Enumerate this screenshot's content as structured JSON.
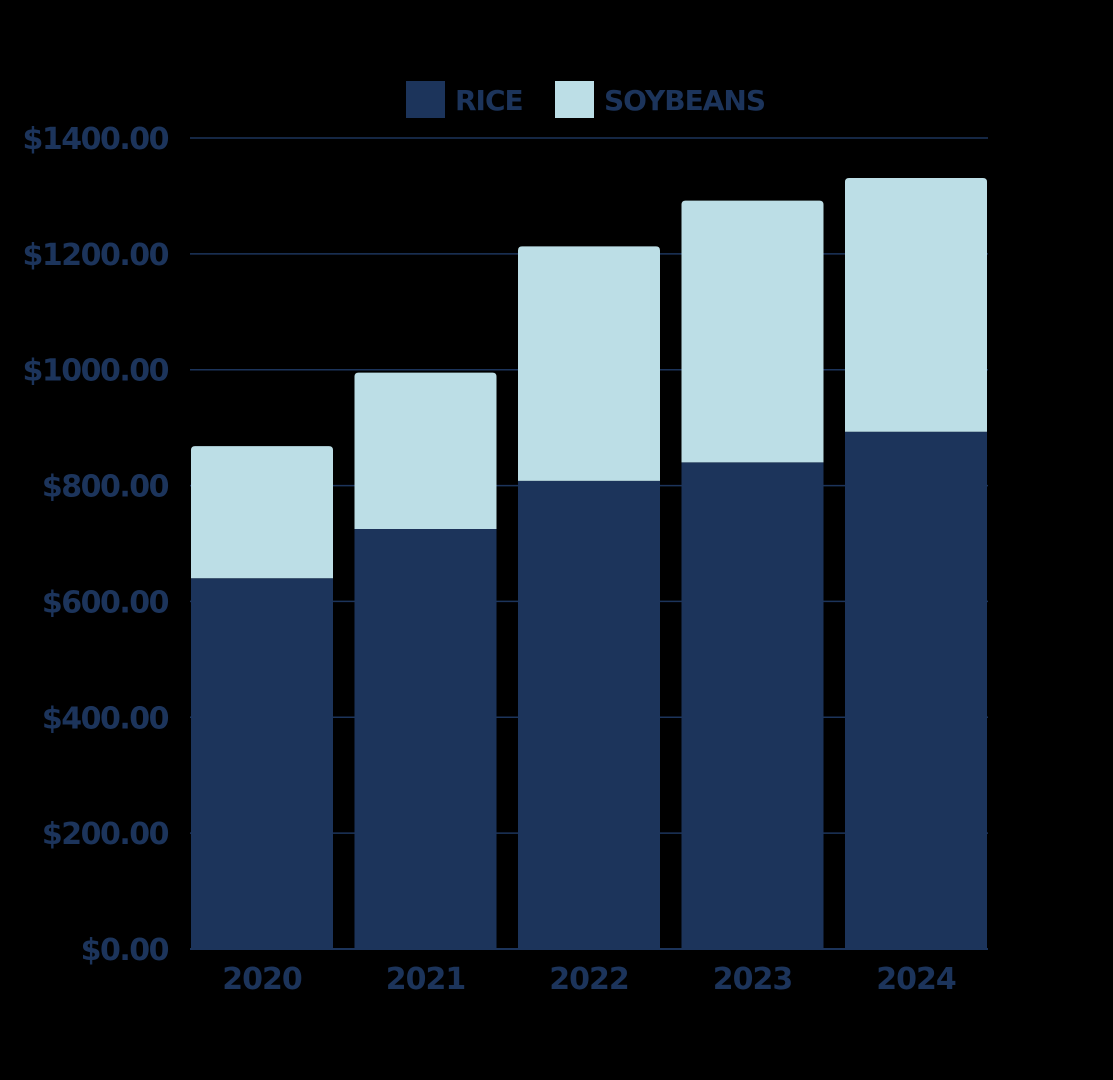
{
  "colors": {
    "background": "#000000",
    "rice": "#1c345b",
    "soybeans": "#bcdee6",
    "text": "#1c345b",
    "gridline": "#1c345b"
  },
  "legend": {
    "placement": "top-center",
    "items": [
      {
        "label": "RICE",
        "color": "#1c345b"
      },
      {
        "label": "SOYBEANS",
        "color": "#bcdee6"
      }
    ]
  },
  "chart_data": {
    "type": "bar",
    "stacked": true,
    "title": "",
    "xlabel": "",
    "ylabel": "",
    "categories": [
      "2020",
      "2021",
      "2022",
      "2023",
      "2024"
    ],
    "series": [
      {
        "name": "RICE",
        "color": "#1c345b",
        "values": [
          640,
          725,
          808,
          840,
          893
        ]
      },
      {
        "name": "SOYBEANS",
        "color": "#bcdee6",
        "values": [
          228,
          270,
          405,
          452,
          438
        ]
      }
    ],
    "ylim": [
      0,
      1400
    ],
    "yticks": [
      0,
      200,
      400,
      600,
      800,
      1000,
      1200,
      1400
    ],
    "ytick_labels": [
      "$0.00",
      "$200.00",
      "$400.00",
      "$600.00",
      "$800.00",
      "$1000.00",
      "$1200.00",
      "$1400.00"
    ],
    "grid": true
  }
}
